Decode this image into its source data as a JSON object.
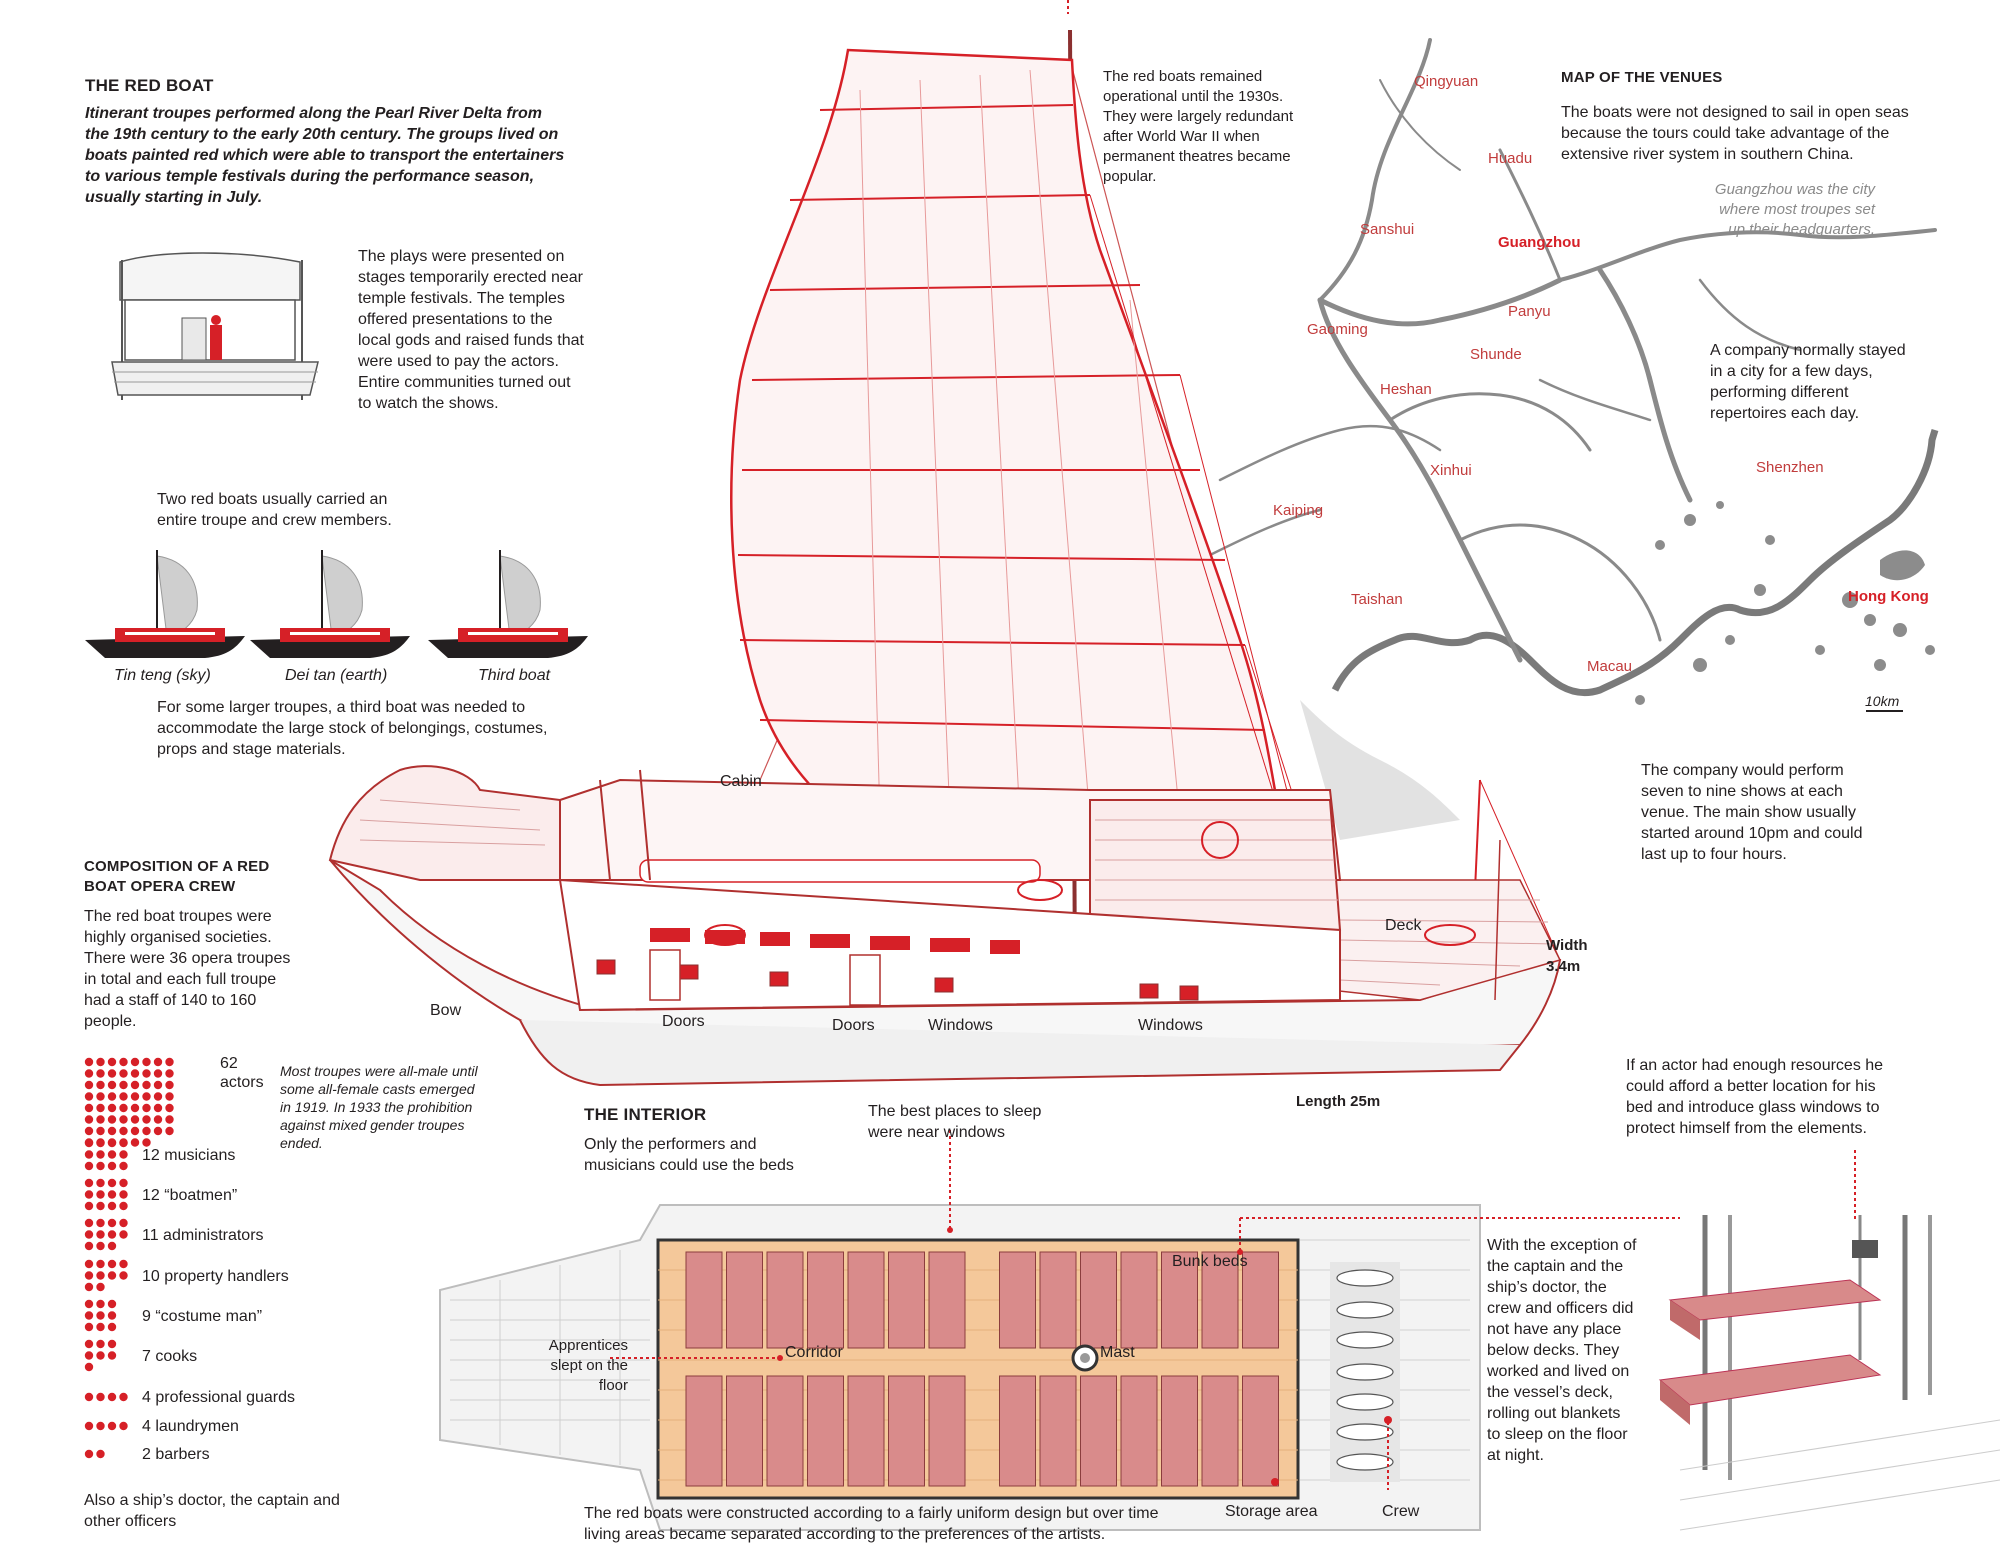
{
  "accent_color": "#d62027",
  "red_boat": {
    "title": "THE RED BOAT",
    "intro": "Itinerant troupes performed along the Pearl River Delta from the 19th century to the early 20th century. The groups lived on boats painted red which were able to transport the entertainers to various temple festivals during the performance season, usually starting in July.",
    "plays_text": "The plays were presented on stages temporarily erected near temple festivals. The temples offered presentations to the local gods and raised funds that were used to pay the actors. Entire communities turned out to watch the shows.",
    "two_boats_text": "Two red boats usually carried an entire troupe and crew members.",
    "boats": [
      {
        "name": "Tin teng (sky)"
      },
      {
        "name": "Dei tan (earth)"
      },
      {
        "name": "Third boat"
      }
    ],
    "third_boat_text": "For some larger troupes, a third boat was needed to accommodate the large stock of belongings, costumes, props and stage materials."
  },
  "composition": {
    "title": "COMPOSITION OF A RED BOAT OPERA CREW",
    "text": "The red boat troupes were highly organised societies. There were 36 opera troupes in total and each full troupe had a staff of 140 to 160 people.",
    "note": "Most troupes were all-male until some all-female casts emerged in 1919. In 1933 the prohibition against mixed gender troupes ended.",
    "groups": [
      {
        "label": "62 actors",
        "count": 62
      },
      {
        "label": "12 musicians",
        "count": 12
      },
      {
        "label": "12 “boatmen”",
        "count": 12
      },
      {
        "label": "11 administrators",
        "count": 11
      },
      {
        "label": "10 property handlers",
        "count": 10
      },
      {
        "label": "9 “costume man”",
        "count": 9
      },
      {
        "label": "7 cooks",
        "count": 7
      },
      {
        "label": "4 professional guards",
        "count": 4
      },
      {
        "label": "4 laundrymen",
        "count": 4
      },
      {
        "label": "2 barbers",
        "count": 2
      }
    ],
    "others": "Also a ship’s doctor, the captain and other officers"
  },
  "boat": {
    "operational_text": "The red boats remained operational until the 1930s. They were largely redundant after World War II when permanent theatres became popular.",
    "labels": {
      "cabin": "Cabin",
      "deck": "Deck",
      "bow": "Bow",
      "doors1": "Doors",
      "doors2": "Doors",
      "windows1": "Windows",
      "windows2": "Windows",
      "width": "Width 3.4m",
      "length": "Length 25m"
    },
    "shows_text": "The company would perform seven to nine shows at each venue. The main show usually started around 10pm and could last up to four hours."
  },
  "map": {
    "title": "MAP OF THE VENUES",
    "text": "The boats were not designed to sail in open seas because the tours could take advantage of the extensive river system in southern China.",
    "guangzhou_note": "Guangzhou was the city where most troupes set up their headquarters.",
    "company_text": "A company normally stayed in a city for a few days, performing different repertoires each day.",
    "places": [
      "Qingyuan",
      "Huadu",
      "Sanshui",
      "Guangzhou",
      "Panyu",
      "Gaoming",
      "Shunde",
      "Heshan",
      "Xinhui",
      "Kaiping",
      "Taishan",
      "Shenzhen",
      "Hong Kong",
      "Macau"
    ],
    "scale": "10km"
  },
  "interior": {
    "title": "THE INTERIOR",
    "beds_text": "Only the performers and musicians could use the beds",
    "windows_text": "The best places to sleep were near windows",
    "labels": {
      "bunk_beds": "Bunk beds",
      "corridor": "Corridor",
      "mast": "Mast",
      "apprentices": "Apprentices slept on the floor",
      "storage": "Storage area",
      "crew": "Crew"
    },
    "design_text": "The red boats were constructed according to a fairly uniform design but over time living areas became separated according to the preferences of the artists.",
    "actor_text": "If an actor had enough resources he could afford a better location for his bed and introduce glass windows to protect himself from the elements.",
    "exception_text": "With the exception of the captain and the ship’s doctor, the crew and officers did not have any place below decks. They worked and lived on the vessel’s deck, rolling out blankets to sleep on the floor at night."
  }
}
